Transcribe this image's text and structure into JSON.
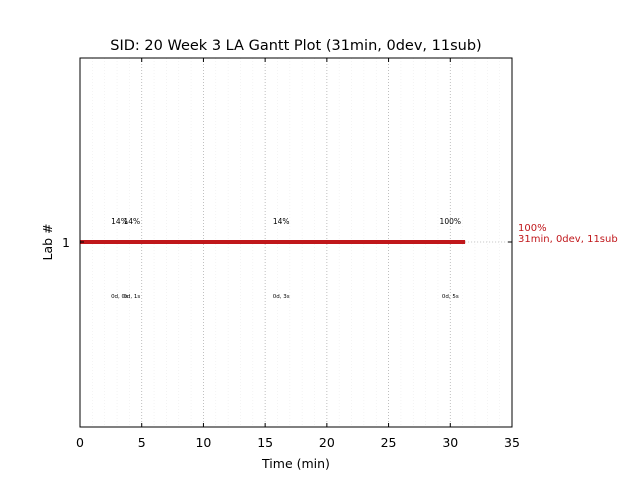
{
  "chart_data": {
    "type": "gantt",
    "title": "SID: 20 Week 3 LA Gantt Plot (31min, 0dev, 11sub)",
    "xlabel": "Time (min)",
    "ylabel": "Lab #",
    "xlim": [
      0,
      35
    ],
    "x_ticks": [
      "0",
      "5",
      "10",
      "15",
      "20",
      "25",
      "30",
      "35"
    ],
    "y_ticks": [
      "1"
    ],
    "grid": true,
    "bar": {
      "lab": 1,
      "start": 0,
      "end": 31.2,
      "color": "#c0171b"
    },
    "annotations": [
      {
        "x": 3.2,
        "top": "14%",
        "bottom": "0d, 0s"
      },
      {
        "x": 4.2,
        "top": "14%",
        "bottom": "0d, 1s"
      },
      {
        "x": 16.3,
        "top": "14%",
        "bottom": "0d, 3s"
      },
      {
        "x": 30.0,
        "top": "100%",
        "bottom": "0d, 5s"
      }
    ],
    "right_label": {
      "line1": "100%",
      "line2": "31min, 0dev, 11sub",
      "color": "#c0171b"
    }
  }
}
